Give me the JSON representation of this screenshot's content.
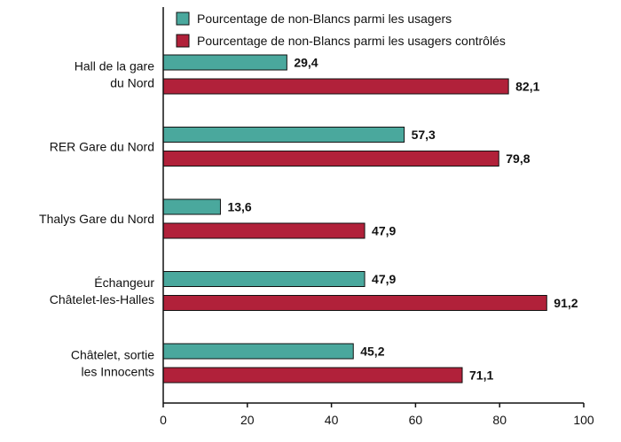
{
  "chart_data": {
    "type": "bar",
    "orientation": "horizontal",
    "categories": [
      [
        "Hall de la gare",
        "du Nord"
      ],
      [
        "RER Gare du Nord"
      ],
      [
        "Thalys Gare du Nord"
      ],
      [
        "Échangeur",
        "Châtelet-les-Halles"
      ],
      [
        "Châtelet, sortie",
        "les Innocents"
      ]
    ],
    "series": [
      {
        "name": "Pourcentage de non-Blancs parmi les usagers",
        "color": "#4aa89d",
        "values": [
          29.4,
          57.3,
          13.6,
          47.9,
          45.2
        ],
        "labels": [
          "29,4",
          "57,3",
          "13,6",
          "47,9",
          "45,2"
        ]
      },
      {
        "name": "Pourcentage de non-Blancs parmi les usagers contrôlés",
        "color": "#b1213a",
        "values": [
          82.1,
          79.8,
          47.9,
          91.2,
          71.1
        ],
        "labels": [
          "82,1",
          "79,8",
          "47,9",
          "91,2",
          "71,1"
        ]
      }
    ],
    "xlim": [
      0,
      100
    ],
    "xticks": [
      0,
      20,
      40,
      60,
      80,
      100
    ],
    "title": "",
    "xlabel": "",
    "ylabel": "",
    "grid": false,
    "legend_position": "top"
  }
}
